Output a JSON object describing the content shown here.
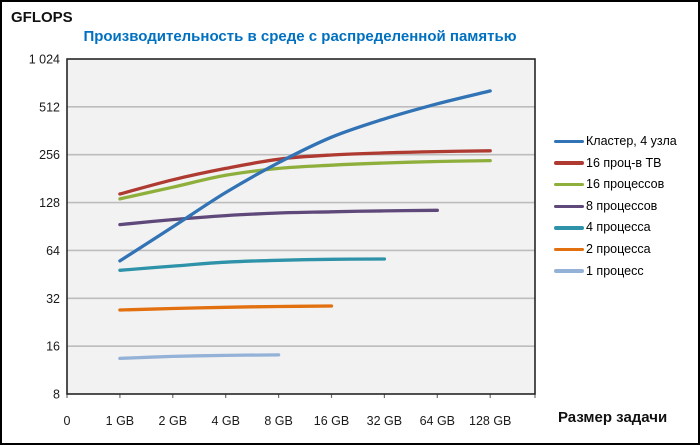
{
  "chart_data": {
    "type": "line",
    "title": "Производительность в среде с распределенной памятью",
    "title_color": "#0070C0",
    "ylabel": "GFLOPS",
    "xlabel": "Размер задачи",
    "y_scale": "log2",
    "ylim": [
      8,
      1024
    ],
    "grid": true,
    "legend_position": "right",
    "plot_bg": "#F2F2F2",
    "grid_color": "#BDBDBD",
    "plot_border_color": "#262626",
    "tick_color": "#6E6E6E",
    "tick_label_color": "#1A1A1A",
    "y_ticks": [
      {
        "label": "1 024",
        "value": 1024
      },
      {
        "label": "512",
        "value": 512
      },
      {
        "label": "256",
        "value": 256
      },
      {
        "label": "128",
        "value": 128
      },
      {
        "label": "64",
        "value": 64
      },
      {
        "label": "32",
        "value": 32
      },
      {
        "label": "16",
        "value": 16
      },
      {
        "label": "8",
        "value": 8
      }
    ],
    "categories": [
      "0",
      "1 GB",
      "2 GB",
      "4 GB",
      "8 GB",
      "16 GB",
      "32 GB",
      "64 GB",
      "128 GB"
    ],
    "series": [
      {
        "name": "Кластер, 4 узла",
        "color": "#3173B5",
        "start": 1,
        "values": [
          55,
          90,
          148,
          228,
          330,
          430,
          535,
          645
        ]
      },
      {
        "name": "16 проц-в ТВ",
        "color": "#AE3A32",
        "start": 1,
        "values": [
          145,
          178,
          210,
          240,
          255,
          263,
          268,
          271
        ]
      },
      {
        "name": "16 процессов",
        "color": "#8FAF3C",
        "start": 1,
        "values": [
          135,
          160,
          190,
          210,
          220,
          227,
          232,
          235
        ]
      },
      {
        "name": "8 процессов",
        "color": "#5F497A",
        "start": 1,
        "values": [
          93,
          100,
          106,
          110,
          112,
          113.5,
          114.5
        ]
      },
      {
        "name": "4 процесса",
        "color": "#2E93A8",
        "start": 1,
        "values": [
          48,
          51,
          54,
          55.5,
          56.3,
          56.5
        ]
      },
      {
        "name": "2 процесса",
        "color": "#E2700F",
        "start": 1,
        "values": [
          27,
          27.6,
          28.1,
          28.4,
          28.6
        ]
      },
      {
        "name": "1 процесс",
        "color": "#94B2D7",
        "start": 1,
        "values": [
          13.4,
          13.8,
          14.0,
          14.1
        ]
      }
    ]
  }
}
